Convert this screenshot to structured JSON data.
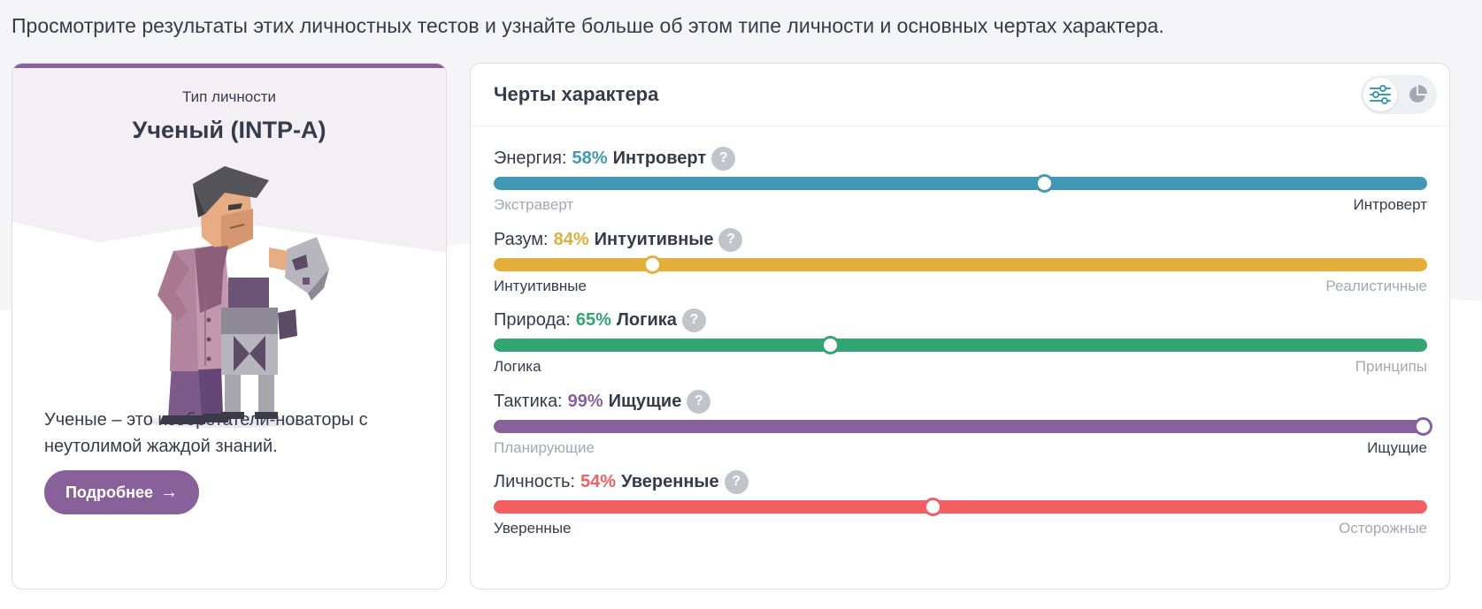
{
  "intro_text": "Просмотрите результаты этих личностных тестов и узнайте больше об этом типе личности и основных чертах характера.",
  "type_card": {
    "label": "Тип личности",
    "name": "Ученый (INTP-A)",
    "illustration": "scientist-illustration",
    "description": "Ученые – это изобретатели-новаторы с неутолимой жаждой знаний.",
    "button_label": "Подробнее",
    "button_icon": "arrow-right-icon",
    "accent": "#88619a"
  },
  "traits_card": {
    "title": "Черты характера",
    "views": [
      {
        "icon": "sliders-icon",
        "active": true
      },
      {
        "icon": "pie-chart-icon",
        "active": false
      }
    ],
    "traits": [
      {
        "label": "Энергия:",
        "percent": "58%",
        "side": "Интроверт",
        "left_pole": "Экстраверт",
        "right_pole": "Интроверт",
        "active_pole": "right",
        "position": 0.59,
        "color": "#4298b4"
      },
      {
        "label": "Разум:",
        "percent": "84%",
        "side": "Интуитивные",
        "left_pole": "Интуитивные",
        "right_pole": "Реалистичные",
        "active_pole": "left",
        "position": 0.17,
        "color": "#e4ae3a"
      },
      {
        "label": "Природа:",
        "percent": "65%",
        "side": "Логика",
        "left_pole": "Логика",
        "right_pole": "Принципы",
        "active_pole": "left",
        "position": 0.36,
        "color": "#33a474"
      },
      {
        "label": "Тактика:",
        "percent": "99%",
        "side": "Ищущие",
        "left_pole": "Планирующие",
        "right_pole": "Ищущие",
        "active_pole": "right",
        "position": 0.995,
        "color": "#88619a"
      },
      {
        "label": "Личность:",
        "percent": "54%",
        "side": "Уверенные",
        "left_pole": "Уверенные",
        "right_pole": "Осторожные",
        "active_pole": "left",
        "position": 0.47,
        "color": "#f25e62"
      }
    ]
  }
}
